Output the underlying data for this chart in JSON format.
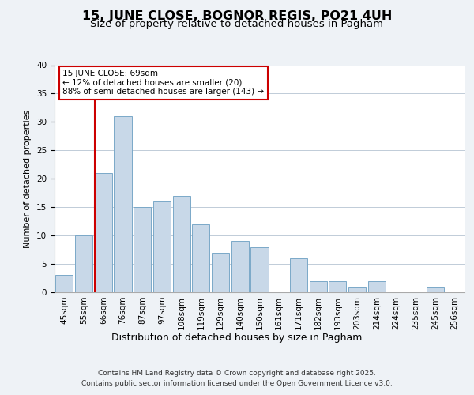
{
  "title": "15, JUNE CLOSE, BOGNOR REGIS, PO21 4UH",
  "subtitle": "Size of property relative to detached houses in Pagham",
  "xlabel": "Distribution of detached houses by size in Pagham",
  "ylabel": "Number of detached properties",
  "bar_labels": [
    "45sqm",
    "55sqm",
    "66sqm",
    "76sqm",
    "87sqm",
    "97sqm",
    "108sqm",
    "119sqm",
    "129sqm",
    "140sqm",
    "150sqm",
    "161sqm",
    "171sqm",
    "182sqm",
    "193sqm",
    "203sqm",
    "214sqm",
    "224sqm",
    "235sqm",
    "245sqm",
    "256sqm"
  ],
  "bar_values": [
    3,
    10,
    21,
    31,
    15,
    16,
    17,
    12,
    7,
    9,
    8,
    0,
    6,
    2,
    2,
    1,
    2,
    0,
    0,
    1,
    0
  ],
  "bar_color": "#c8d8e8",
  "bar_edge_color": "#7aa8c8",
  "vline_color": "#cc0000",
  "vline_x_index": 2,
  "annotation_text": "15 JUNE CLOSE: 69sqm\n← 12% of detached houses are smaller (20)\n88% of semi-detached houses are larger (143) →",
  "annotation_box_color": "#ffffff",
  "annotation_box_edge": "#cc0000",
  "ylim": [
    0,
    40
  ],
  "yticks": [
    0,
    5,
    10,
    15,
    20,
    25,
    30,
    35,
    40
  ],
  "bg_color": "#eef2f6",
  "plot_bg_color": "#ffffff",
  "grid_color": "#c0ccd8",
  "footer_line1": "Contains HM Land Registry data © Crown copyright and database right 2025.",
  "footer_line2": "Contains public sector information licensed under the Open Government Licence v3.0.",
  "title_fontsize": 11.5,
  "subtitle_fontsize": 9.5,
  "xlabel_fontsize": 9,
  "ylabel_fontsize": 8,
  "tick_fontsize": 7.5,
  "annotation_fontsize": 7.5,
  "footer_fontsize": 6.5
}
